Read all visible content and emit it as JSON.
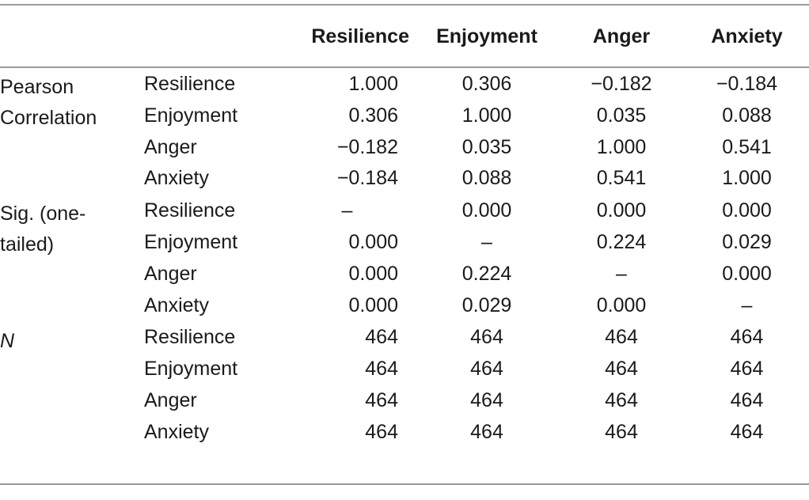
{
  "header": {
    "columns": [
      "Resilience",
      "Enjoyment",
      "Anger",
      "Anxiety"
    ]
  },
  "groups": [
    {
      "label": "Pearson Correlation",
      "label_lines": [
        "Pearson",
        "Correlation"
      ],
      "italic": false,
      "rows": [
        {
          "variable": "Resilience",
          "values": [
            "1.000",
            "0.306",
            "−0.182",
            "−0.184"
          ]
        },
        {
          "variable": "Enjoyment",
          "values": [
            "0.306",
            "1.000",
            "0.035",
            "0.088"
          ]
        },
        {
          "variable": "Anger",
          "values": [
            "−0.182",
            "0.035",
            "1.000",
            "0.541"
          ]
        },
        {
          "variable": "Anxiety",
          "values": [
            "−0.184",
            "0.088",
            "0.541",
            "1.000"
          ]
        }
      ]
    },
    {
      "label": "Sig. (one-tailed)",
      "label_lines": [
        "Sig. (one-",
        "tailed)"
      ],
      "italic": false,
      "rows": [
        {
          "variable": "Resilience",
          "values": [
            "–",
            "0.000",
            "0.000",
            "0.000"
          ]
        },
        {
          "variable": "Enjoyment",
          "values": [
            "0.000",
            "–",
            "0.224",
            "0.029"
          ]
        },
        {
          "variable": "Anger",
          "values": [
            "0.000",
            "0.224",
            "–",
            "0.000"
          ]
        },
        {
          "variable": "Anxiety",
          "values": [
            "0.000",
            "0.029",
            "0.000",
            "–"
          ]
        }
      ]
    },
    {
      "label": "N",
      "label_lines": [
        "N"
      ],
      "italic": true,
      "rows": [
        {
          "variable": "Resilience",
          "values": [
            "464",
            "464",
            "464",
            "464"
          ]
        },
        {
          "variable": "Enjoyment",
          "values": [
            "464",
            "464",
            "464",
            "464"
          ]
        },
        {
          "variable": "Anger",
          "values": [
            "464",
            "464",
            "464",
            "464"
          ]
        },
        {
          "variable": "Anxiety",
          "values": [
            "464",
            "464",
            "464",
            "464"
          ]
        }
      ]
    }
  ]
}
